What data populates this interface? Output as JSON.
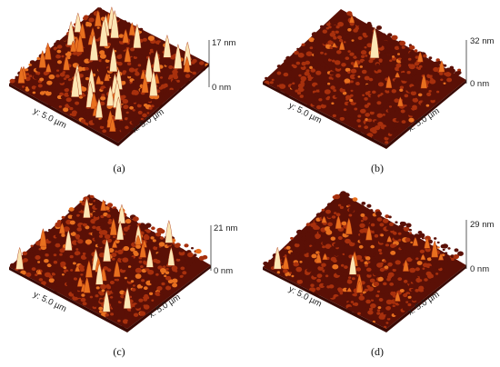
{
  "panels": [
    {
      "id": "a",
      "caption": "(a)",
      "z_max_label": "17 nm",
      "z_min_label": "0 nm",
      "y_axis_label": "y: 5.0 µm",
      "x_axis_label": "x: 5.0 µm",
      "roughness": 1.0,
      "peaks": 1.0
    },
    {
      "id": "b",
      "caption": "(b)",
      "z_max_label": "32 nm",
      "z_min_label": "0 nm",
      "y_axis_label": "y: 5.0 µm",
      "x_axis_label": "x: 5.0 µm",
      "roughness": 0.45,
      "peaks": 0.15
    },
    {
      "id": "c",
      "caption": "(c)",
      "z_max_label": "21 nm",
      "z_min_label": "0 nm",
      "y_axis_label": "y: 5.0 µm",
      "x_axis_label": "x: 5.0 µm",
      "roughness": 0.8,
      "peaks": 0.55
    },
    {
      "id": "d",
      "caption": "(d)",
      "z_max_label": "29 nm",
      "z_min_label": "0 nm",
      "y_axis_label": "y: 5.0 µm",
      "x_axis_label": "x: 5.0 µm",
      "roughness": 0.55,
      "peaks": 0.3
    }
  ],
  "colors": {
    "surface_dark": "#5a1006",
    "surface_mid": "#a8300d",
    "surface_bright": "#e8701f",
    "peak_highlight": "#fbe6b4"
  }
}
